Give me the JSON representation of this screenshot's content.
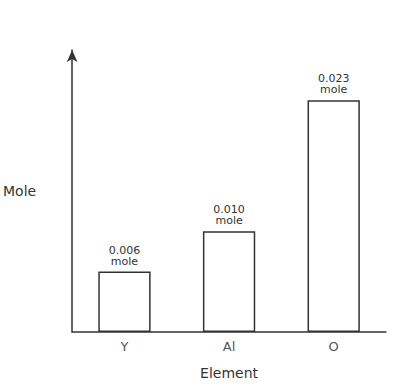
{
  "chart_data": {
    "type": "bar",
    "categories": [
      "Y",
      "Al",
      "O"
    ],
    "values": [
      0.006,
      0.01,
      0.023
    ],
    "value_labels": [
      "0.006\nmole",
      "0.010\nmole",
      "0.023\nmole"
    ],
    "data_labels": true,
    "xlabel": "Element",
    "ylabel": "Mole",
    "color": "white",
    "ylim": [
      0,
      0.028
    ],
    "yticks": [],
    "tick_labels": "x",
    "grid": false
  }
}
